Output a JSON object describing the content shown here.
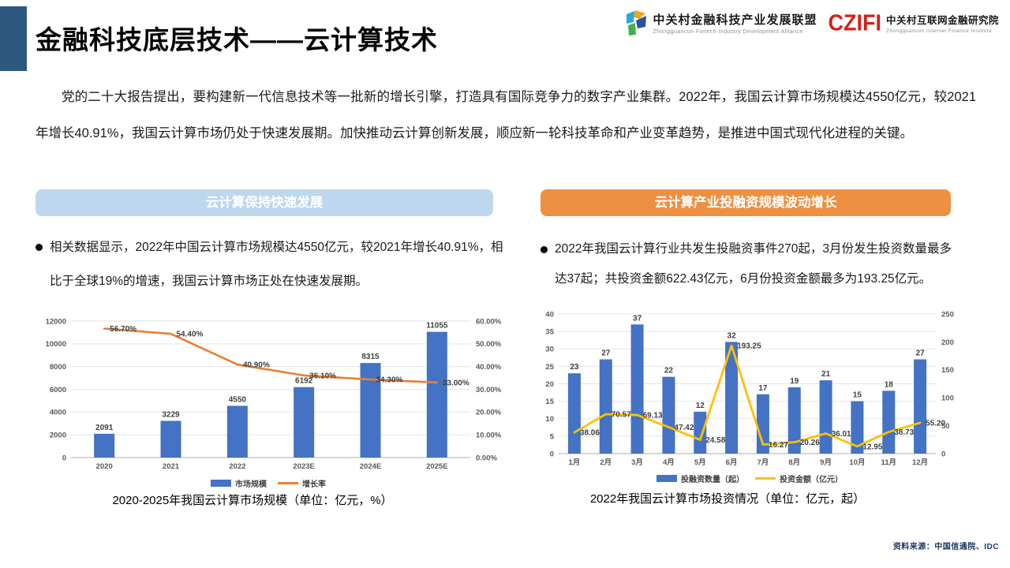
{
  "header": {
    "title": "金融科技底层技术——云计算技术",
    "logos": {
      "alliance": {
        "name_cn": "中关村金融科技产业发展联盟",
        "name_en": "Zhongguancun Fintech Industry Development Alliance"
      },
      "institute": {
        "acronym": "CZIFI",
        "name_cn": "中关村互联网金融研究院",
        "name_en": "Zhongguancun Internet Finance Institute"
      }
    }
  },
  "intro": "党的二十大报告提出，要构建新一代信息技术等一批新的增长引擎，打造具有国际竞争力的数字产业集群。2022年，我国云计算市场规模达4550亿元，较2021年增长40.91%，我国云计算市场仍处于快速发展期。加快推动云计算创新发展，顺应新一轮科技革命和产业变革趋势，是推进中国式现代化进程的关键。",
  "left_panel": {
    "header": "云计算保持快速发展",
    "bullet": "相关数据显示，2022年中国云计算市场规模达4550亿元，较2021年增长40.91%，相比于全球19%的增速，我国云计算市场正处在快速发展期。",
    "caption": "2020-2025年我国云计算市场规模（单位：亿元，%）"
  },
  "right_panel": {
    "header": "云计算产业投融资规模波动增长",
    "bullet": "2022年我国云计算行业共发生投融资事件270起，3月份发生投资数量最多达37起；共投资金额622.43亿元，6月份投资金额最多为193.25亿元。",
    "caption": "2022年我国云计算市场投资情况（单位：亿元，起）"
  },
  "source": "资料来源：中国信通院、IDC",
  "colors": {
    "bar_blue": "#4472C4",
    "line_orange": "#ED7D31",
    "line_gold": "#FFC000",
    "header_blue": "#BDD7EE",
    "header_orange": "#EE9041",
    "accent_block": "#2C5880",
    "czifi_red": "#CF2318",
    "axis_gray": "#595959"
  },
  "chart_data": [
    {
      "type": "bar",
      "subtype": "bar+line dual axis",
      "title": "2020-2025年我国云计算市场规模（单位：亿元，%）",
      "categories": [
        "2020",
        "2021",
        "2022",
        "2023E",
        "2024E",
        "2025E"
      ],
      "axis_left": {
        "min": 0,
        "max": 12000,
        "ticks": [
          "0",
          "2000",
          "4000",
          "6000",
          "8000",
          "10000",
          "12000"
        ]
      },
      "axis_right": {
        "min": 0,
        "max": 60,
        "ticks": [
          "0.00%",
          "10.00%",
          "20.00%",
          "30.00%",
          "40.00%",
          "50.00%",
          "60.00%"
        ]
      },
      "grid": true,
      "legend_position": "bottom",
      "series": [
        {
          "name": "市场规模",
          "kind": "bar",
          "axis": "left",
          "color": "#4472C4",
          "values": [
            2091,
            3229,
            4550,
            6192,
            8315,
            11055
          ],
          "value_labels": [
            "2091",
            "3229",
            "4550",
            "6192",
            "8315",
            "11055"
          ]
        },
        {
          "name": "增长率",
          "kind": "line",
          "axis": "right",
          "color": "#ED7D31",
          "values": [
            56.7,
            54.4,
            40.9,
            36.1,
            34.3,
            33.0
          ],
          "value_labels": [
            "56.70%",
            "54.40%",
            "40.90%",
            "36.10%",
            "34.30%",
            "33.00%"
          ]
        }
      ]
    },
    {
      "type": "bar",
      "subtype": "bar+line dual axis",
      "title": "2022年我国云计算市场投资情况（单位：亿元，起）",
      "categories": [
        "1月",
        "2月",
        "3月",
        "4月",
        "5月",
        "6月",
        "7月",
        "8月",
        "9月",
        "10月",
        "11月",
        "12月"
      ],
      "axis_left": {
        "min": 0,
        "max": 40,
        "ticks": [
          "0",
          "5",
          "10",
          "15",
          "20",
          "25",
          "30",
          "35",
          "40"
        ]
      },
      "axis_right": {
        "min": 0,
        "max": 250,
        "ticks": [
          "0",
          "50",
          "100",
          "150",
          "200",
          "250"
        ]
      },
      "grid": true,
      "legend_position": "bottom",
      "series": [
        {
          "name": "投融资数量（起）",
          "kind": "bar",
          "axis": "left",
          "color": "#4472C4",
          "values": [
            23,
            27,
            37,
            22,
            12,
            32,
            17,
            19,
            21,
            15,
            18,
            27
          ],
          "value_labels": [
            "23",
            "27",
            "37",
            "22",
            "12",
            "32",
            "17",
            "19",
            "21",
            "15",
            "18",
            "27"
          ]
        },
        {
          "name": "投资金额（亿元）",
          "kind": "line",
          "axis": "right",
          "color": "#FFC000",
          "values": [
            38.06,
            70.57,
            69.13,
            47.42,
            24.58,
            193.25,
            16.27,
            20.26,
            36.01,
            12.95,
            38.73,
            55.2
          ],
          "value_labels": [
            "38.06",
            "70.57",
            "69.13",
            "47.42",
            "24.58",
            "193.25",
            "16.27",
            "20.26",
            "36.01",
            "12.95",
            "38.73",
            "55.20"
          ]
        }
      ]
    }
  ]
}
